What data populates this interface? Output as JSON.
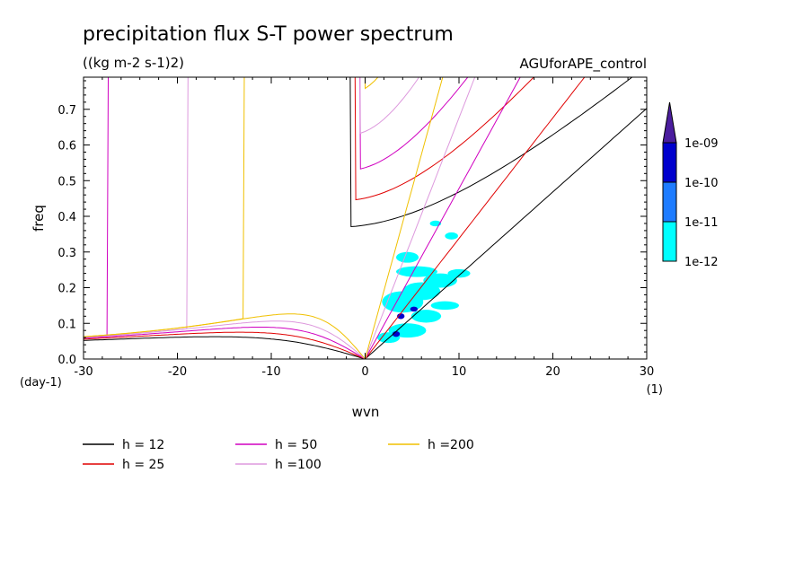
{
  "chart_data": {
    "type": "line",
    "title": "precipitation flux S-T power spectrum",
    "subtitle": "((kg m-2 s-1)2)",
    "run_label": "AGUforAPE_control",
    "xlabel": "wvn",
    "ylabel": "freq",
    "x_unit": "(1)",
    "y_unit": "(day-1)",
    "xlim": [
      -30,
      30
    ],
    "ylim": [
      0,
      0.79
    ],
    "x_ticks": [
      "-30",
      "-20",
      "-10",
      "0",
      "10",
      "20",
      "30"
    ],
    "y_ticks": [
      "0.0",
      "0.1",
      "0.2",
      "0.3",
      "0.4",
      "0.5",
      "0.6",
      "0.7"
    ],
    "x_tick_values": [
      -30,
      -20,
      -10,
      0,
      10,
      20,
      30
    ],
    "y_tick_values": [
      0,
      0.1,
      0.2,
      0.3,
      0.4,
      0.5,
      0.6,
      0.7
    ],
    "series": [
      {
        "name": "h = 12",
        "equivalent_depth": 12,
        "color": "#000000"
      },
      {
        "name": "h = 25",
        "equivalent_depth": 25,
        "color": "#e00000"
      },
      {
        "name": "h = 50",
        "equivalent_depth": 50,
        "color": "#d000c0"
      },
      {
        "name": "h =100",
        "equivalent_depth": 100,
        "color": "#dd99dd"
      },
      {
        "name": "h =200",
        "equivalent_depth": 200,
        "color": "#f0c000"
      }
    ],
    "colorbar": {
      "labels": [
        "1e-12",
        "1e-11",
        "1e-10",
        "1e-09"
      ],
      "colors": [
        "#00ffff",
        "#1e7cff",
        "#0000cd",
        "#4b1d9e"
      ]
    },
    "shaded_regions": [
      {
        "wvn": 2.5,
        "freq": 0.06,
        "rx": 1.2,
        "ry": 0.015,
        "level": 0
      },
      {
        "wvn": 4.5,
        "freq": 0.08,
        "rx": 2.0,
        "ry": 0.02,
        "level": 0
      },
      {
        "wvn": 6.5,
        "freq": 0.12,
        "rx": 1.6,
        "ry": 0.018,
        "level": 0
      },
      {
        "wvn": 4.0,
        "freq": 0.16,
        "rx": 2.2,
        "ry": 0.03,
        "level": 0
      },
      {
        "wvn": 6.0,
        "freq": 0.19,
        "rx": 2.0,
        "ry": 0.025,
        "level": 0
      },
      {
        "wvn": 8.0,
        "freq": 0.22,
        "rx": 1.8,
        "ry": 0.02,
        "level": 0
      },
      {
        "wvn": 5.5,
        "freq": 0.245,
        "rx": 2.2,
        "ry": 0.015,
        "level": 0
      },
      {
        "wvn": 10.0,
        "freq": 0.24,
        "rx": 1.2,
        "ry": 0.012,
        "level": 0
      },
      {
        "wvn": 8.5,
        "freq": 0.15,
        "rx": 1.5,
        "ry": 0.012,
        "level": 0
      },
      {
        "wvn": 4.5,
        "freq": 0.285,
        "rx": 1.2,
        "ry": 0.015,
        "level": 0
      },
      {
        "wvn": 9.2,
        "freq": 0.345,
        "rx": 0.7,
        "ry": 0.01,
        "level": 0
      },
      {
        "wvn": 7.5,
        "freq": 0.38,
        "rx": 0.6,
        "ry": 0.008,
        "level": 0
      },
      {
        "wvn": 3.3,
        "freq": 0.07,
        "rx": 0.4,
        "ry": 0.008,
        "level": 2
      },
      {
        "wvn": 3.8,
        "freq": 0.12,
        "rx": 0.4,
        "ry": 0.008,
        "level": 2
      },
      {
        "wvn": 5.2,
        "freq": 0.14,
        "rx": 0.4,
        "ry": 0.007,
        "level": 2
      }
    ]
  }
}
